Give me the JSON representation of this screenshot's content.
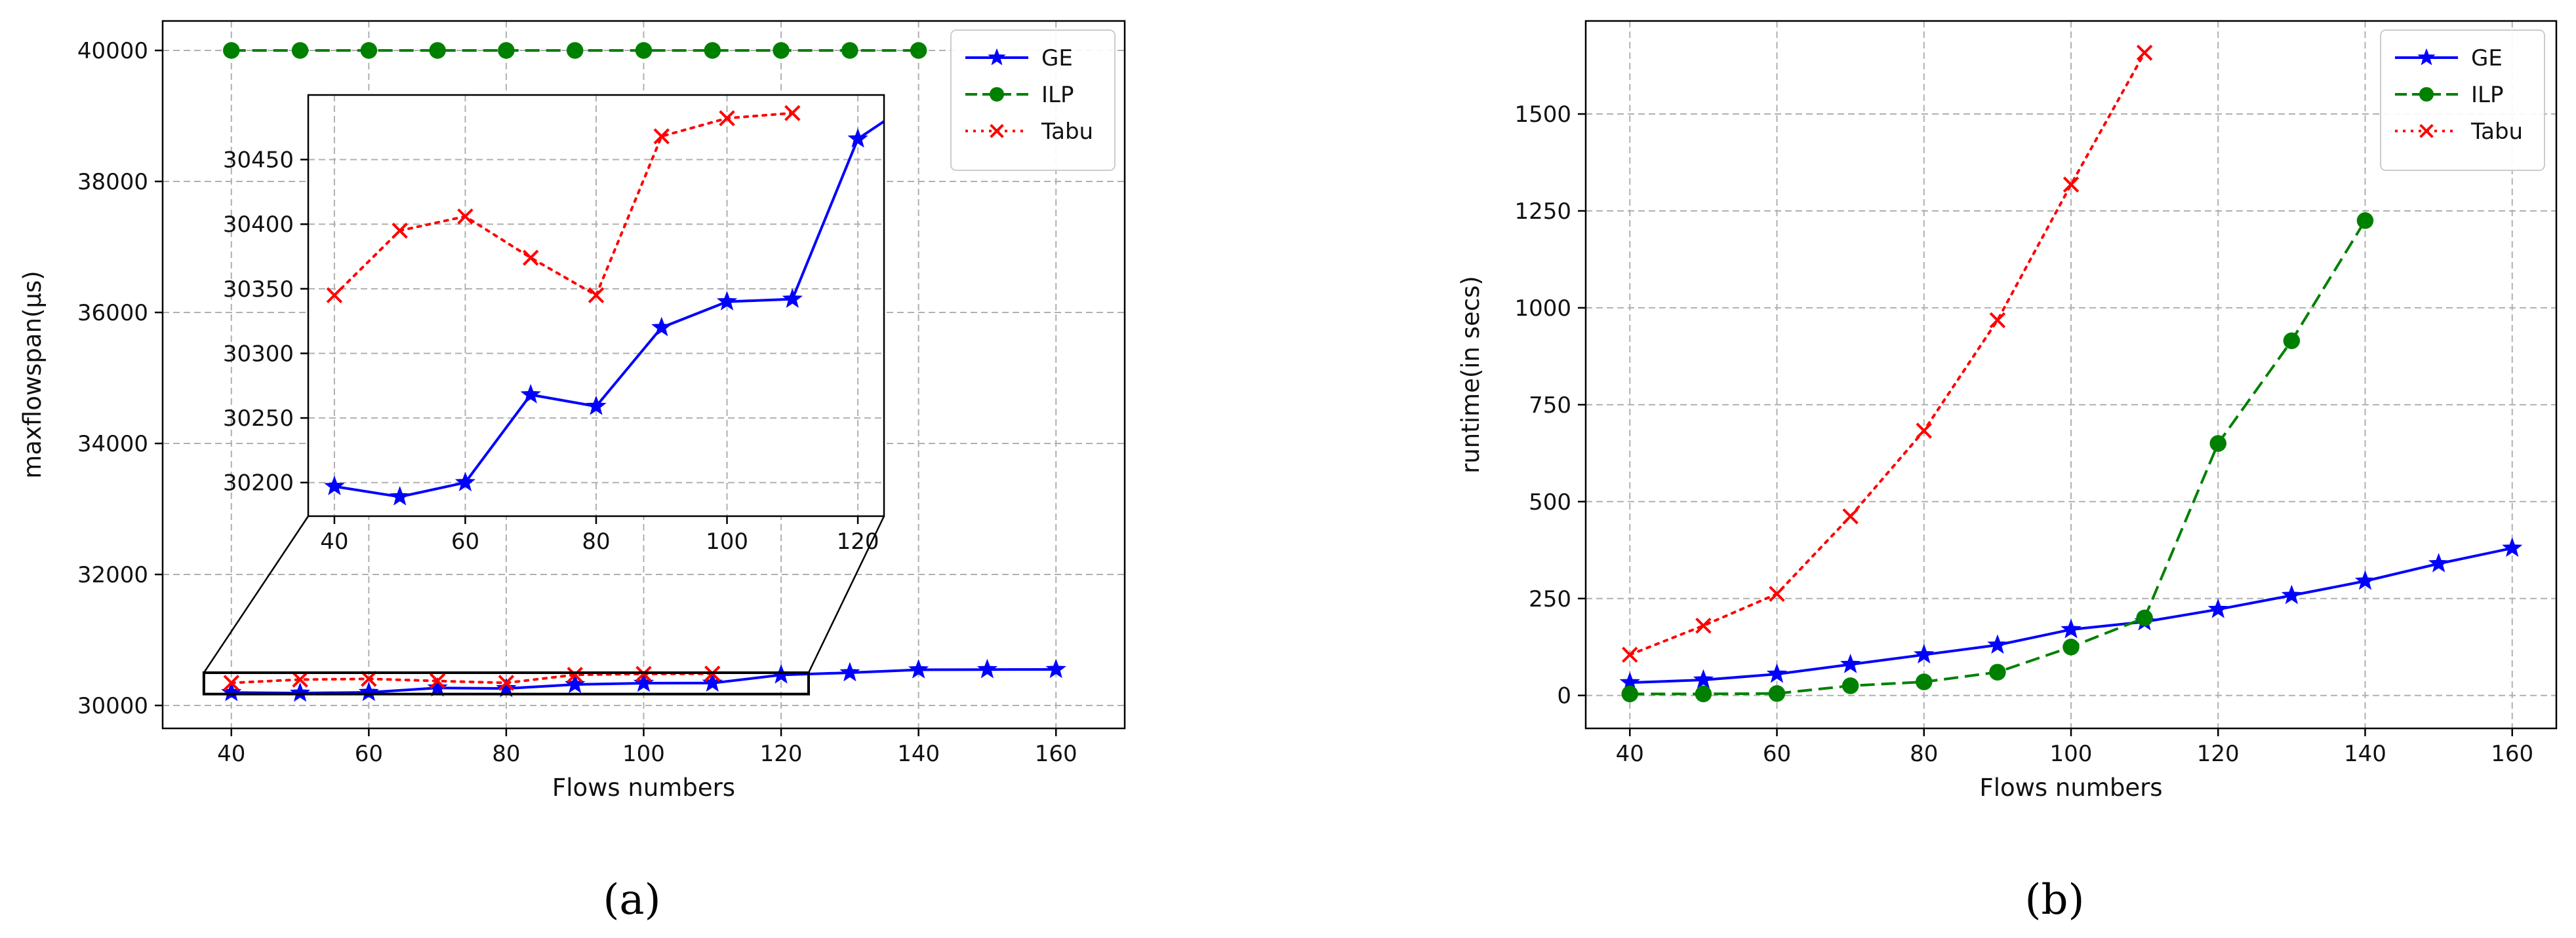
{
  "chart_data": [
    {
      "type": "line",
      "panel_label": "(a)",
      "xlabel": "Flows numbers",
      "ylabel": "maxflowspan(μs)",
      "xlim": [
        30,
        170
      ],
      "ylim": [
        29650,
        40450
      ],
      "xticks": [
        40,
        60,
        80,
        100,
        120,
        140,
        160
      ],
      "yticks": [
        30000,
        32000,
        34000,
        36000,
        38000,
        40000
      ],
      "grid": true,
      "legend_position": "top-right",
      "series": [
        {
          "name": "GE",
          "color": "#0000ff",
          "marker": "star",
          "linestyle": "solid",
          "x": [
            40,
            50,
            60,
            70,
            80,
            90,
            100,
            110,
            120,
            130,
            140,
            150,
            160
          ],
          "y": [
            30197,
            30189,
            30200,
            30268,
            30259,
            30320,
            30340,
            30342,
            30466,
            30500,
            30545,
            30548,
            30550
          ]
        },
        {
          "name": "ILP",
          "color": "#008000",
          "marker": "circle",
          "linestyle": "dashed",
          "x": [
            40,
            50,
            60,
            70,
            80,
            90,
            100,
            110,
            120,
            130,
            140
          ],
          "y": [
            40000,
            40000,
            40000,
            40000,
            40000,
            40000,
            40000,
            40000,
            40000,
            40000,
            40000
          ]
        },
        {
          "name": "Tabu",
          "color": "#ff0000",
          "marker": "x",
          "linestyle": "dotted",
          "x": [
            40,
            50,
            60,
            70,
            80,
            90,
            100,
            110
          ],
          "y": [
            30345,
            30395,
            30406,
            30374,
            30345,
            30468,
            30482,
            30486
          ]
        }
      ],
      "inset": {
        "xlim": [
          36,
          124
        ],
        "ylim": [
          30174,
          30500
        ],
        "xticks": [
          40,
          60,
          80,
          100,
          120
        ],
        "yticks": [
          30200,
          30250,
          30300,
          30350,
          30400,
          30450
        ],
        "zoom_region": {
          "x": [
            36,
            124
          ],
          "y": [
            30174,
            30500
          ]
        }
      }
    },
    {
      "type": "line",
      "panel_label": "(b)",
      "xlabel": "Flows numbers",
      "ylabel": "runtime(in secs)",
      "xlim": [
        34,
        166
      ],
      "ylim": [
        -85,
        1740
      ],
      "xticks": [
        40,
        60,
        80,
        100,
        120,
        140,
        160
      ],
      "yticks": [
        0,
        250,
        500,
        750,
        1000,
        1250,
        1500
      ],
      "grid": true,
      "legend_position": "top-right",
      "series": [
        {
          "name": "GE",
          "color": "#0000ff",
          "marker": "star",
          "linestyle": "solid",
          "x": [
            40,
            50,
            60,
            70,
            80,
            90,
            100,
            110,
            120,
            130,
            140,
            150,
            160
          ],
          "y": [
            33,
            40,
            55,
            80,
            105,
            130,
            170,
            190,
            222,
            258,
            295,
            340,
            380
          ]
        },
        {
          "name": "ILP",
          "color": "#008000",
          "marker": "circle",
          "linestyle": "dashed",
          "x": [
            40,
            50,
            60,
            70,
            80,
            90,
            100,
            110,
            120,
            130,
            140
          ],
          "y": [
            4,
            4,
            5,
            25,
            35,
            60,
            125,
            200,
            650,
            915,
            1225
          ]
        },
        {
          "name": "Tabu",
          "color": "#ff0000",
          "marker": "x",
          "linestyle": "dotted",
          "x": [
            40,
            50,
            60,
            70,
            80,
            90,
            100,
            110
          ],
          "y": [
            105,
            180,
            262,
            462,
            683,
            968,
            1318,
            1658
          ]
        }
      ]
    }
  ]
}
